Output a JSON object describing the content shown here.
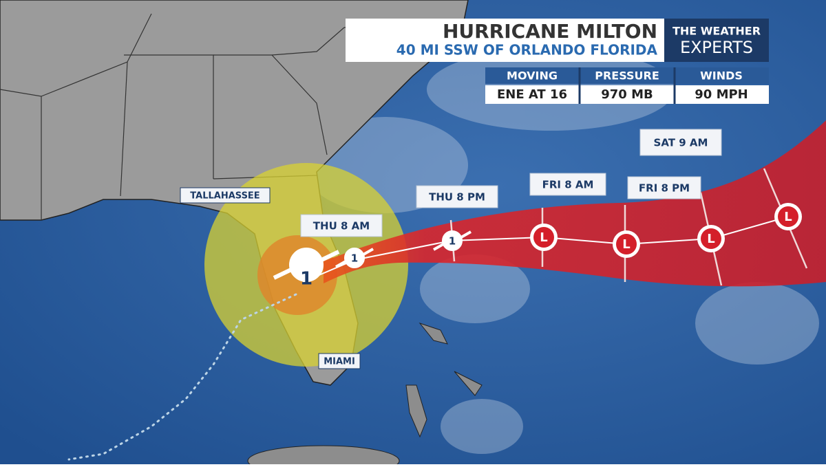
{
  "header": {
    "title": "HURRICANE MILTON",
    "subtitle": "40 MI SSW OF ORLANDO FLORIDA",
    "brand_top": "THE WEATHER",
    "brand_bottom": "EXPERTS"
  },
  "stats": [
    {
      "label": "MOVING",
      "value": "ENE AT 16"
    },
    {
      "label": "PRESSURE",
      "value": "970 MB"
    },
    {
      "label": "WINDS",
      "value": "90 MPH"
    }
  ],
  "cities": [
    "TALLAHASSEE",
    "MIAMI"
  ],
  "current": {
    "symbol": "1"
  },
  "forecast_points": [
    {
      "time": "THU 8 AM",
      "symbol": "1"
    },
    {
      "time": "THU 8 PM",
      "symbol": "1"
    },
    {
      "time": "FRI 8 AM",
      "symbol": "L"
    },
    {
      "time": "FRI 8 PM",
      "symbol": "L"
    },
    {
      "time": "SAT 9 AM",
      "symbol": "L"
    },
    {
      "symbol": "L"
    }
  ]
}
